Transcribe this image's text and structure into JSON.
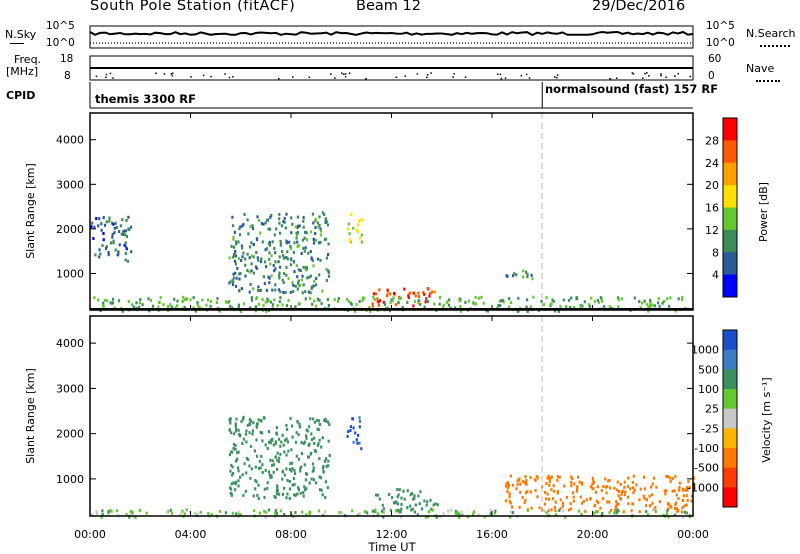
{
  "header": {
    "station": "South Pole Station (fitACF)",
    "beam": "Beam 12",
    "date": "29/Dec/2016"
  },
  "noise_panel": {
    "left_label": "N.Sky",
    "right_label": "N.Search",
    "left_ticks": [
      "10^5",
      "10^0"
    ],
    "right_ticks": [
      "10^5",
      "10^0"
    ]
  },
  "freq_panel": {
    "left_label_line1": "Freq.",
    "left_label_line2": "[MHz]",
    "right_label": "Nave",
    "left_ticks": [
      "18",
      "8"
    ],
    "right_ticks": [
      "60",
      "0"
    ]
  },
  "cpid_panel": {
    "label": "CPID",
    "segments": [
      {
        "name": "themis 3300 RF",
        "start_hour": 0,
        "end_hour": 18
      },
      {
        "name": "normalsound (fast) 157 RF",
        "start_hour": 18,
        "end_hour": 24
      }
    ]
  },
  "x_axis": {
    "label": "Time UT",
    "ticks": [
      "00:00",
      "04:00",
      "08:00",
      "12:00",
      "16:00",
      "20:00",
      "00:00"
    ],
    "range_hours": [
      0,
      24
    ]
  },
  "chart_data": [
    {
      "type": "heatmap",
      "name": "power",
      "ylabel": "Slant Range [km]",
      "yticks": [
        1000,
        2000,
        3000,
        4000
      ],
      "ylim": [
        180,
        4600
      ],
      "colorbar_label": "Power [dB]",
      "colorbar_ticks": [
        "28",
        "24",
        "20",
        "16",
        "12",
        "8",
        "4"
      ],
      "colorbar_colors": [
        "#ff0000",
        "#ff5a00",
        "#ff9f00",
        "#ffe000",
        "#64c832",
        "#3c8c5a",
        "#2a5a9a",
        "#0000ff"
      ],
      "features": [
        {
          "desc_hours": [
            11.2,
            13.8
          ],
          "range_km": [
            300,
            700
          ],
          "level": 26
        },
        {
          "desc_hours": [
            10.2,
            10.8
          ],
          "range_km": [
            1700,
            2400
          ],
          "level": 16
        },
        {
          "desc_hours": [
            5.5,
            9.5
          ],
          "range_km": [
            600,
            2400
          ],
          "level": 9
        },
        {
          "desc_hours": [
            0,
            24
          ],
          "range_km": [
            180,
            500
          ],
          "level": 12
        },
        {
          "desc_hours": [
            16.5,
            18.0
          ],
          "range_km": [
            900,
            1100
          ],
          "level": 10
        },
        {
          "desc_hours": [
            0,
            1.6
          ],
          "range_km": [
            1300,
            2300
          ],
          "level": 7
        }
      ]
    },
    {
      "type": "heatmap",
      "name": "velocity",
      "ylabel": "Slant Range [km]",
      "yticks": [
        1000,
        2000,
        3000,
        4000
      ],
      "ylim": [
        180,
        4600
      ],
      "colorbar_label": "Velocity [m s⁻¹]",
      "colorbar_ticks": [
        "1000",
        "500",
        "100",
        "25",
        "-25",
        "-100",
        "-500",
        "-1000"
      ],
      "colorbar_colors": [
        "#1c50c8",
        "#3c7cc0",
        "#3c9060",
        "#64c832",
        "#c8c8c8",
        "#ffb400",
        "#ff7800",
        "#ff3c00",
        "#ff0000"
      ],
      "features": [
        {
          "desc_hours": [
            11.2,
            13.8
          ],
          "range_km": [
            300,
            800
          ],
          "velocity": 200
        },
        {
          "desc_hours": [
            10.2,
            10.8
          ],
          "range_km": [
            1700,
            2400
          ],
          "velocity": 900
        },
        {
          "desc_hours": [
            5.5,
            9.5
          ],
          "range_km": [
            600,
            2400
          ],
          "velocity": 150
        },
        {
          "desc_hours": [
            16.5,
            24
          ],
          "range_km": [
            300,
            1100
          ],
          "velocity": -150
        },
        {
          "desc_hours": [
            0,
            24
          ],
          "range_km": [
            180,
            350
          ],
          "velocity": 40
        }
      ]
    }
  ]
}
